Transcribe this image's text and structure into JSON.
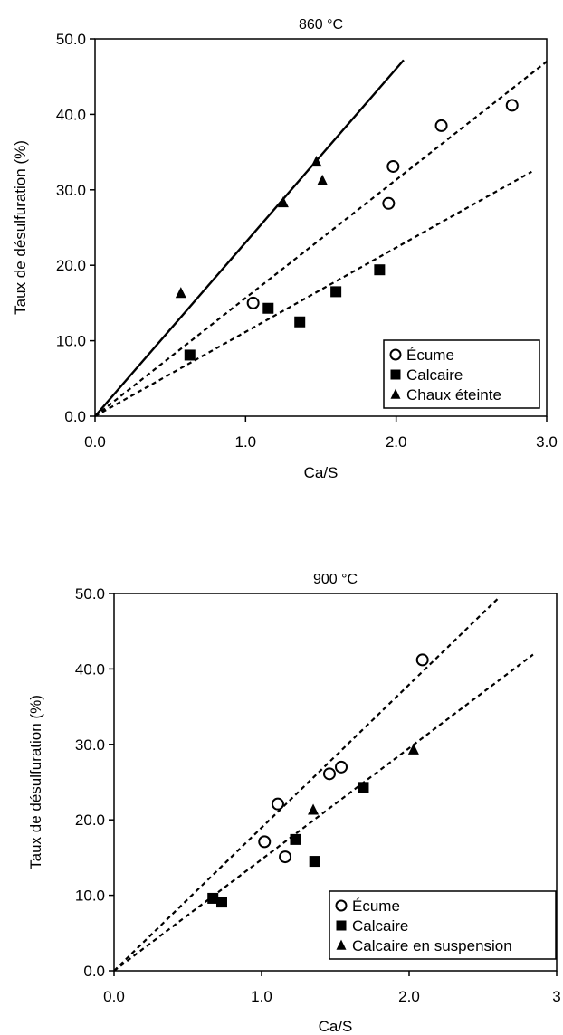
{
  "chart_data": [
    {
      "type": "scatter",
      "title": "860 °C",
      "xlabel": "Ca/S",
      "ylabel": "Taux de désulfuration (%)",
      "xlim": [
        0,
        3
      ],
      "ylim": [
        0,
        50
      ],
      "xticks": [
        0,
        1,
        2,
        3
      ],
      "xtick_labels": [
        "0.0",
        "1.0",
        "2.0",
        "3.0"
      ],
      "yticks": [
        0,
        10,
        20,
        30,
        40,
        50
      ],
      "ytick_labels": [
        "0.0",
        "10.0",
        "20.0",
        "30.0",
        "40.0",
        "50.0"
      ],
      "grid": false,
      "legend_position": "bottom-right",
      "series": [
        {
          "name": "Écume",
          "marker": "circle-open",
          "x": [
            1.05,
            1.95,
            1.98,
            2.3,
            2.77
          ],
          "y": [
            15.0,
            28.2,
            33.1,
            38.5,
            41.2
          ]
        },
        {
          "name": "Calcaire",
          "marker": "square-filled",
          "x": [
            0.63,
            1.15,
            1.36,
            1.6,
            1.89
          ],
          "y": [
            8.1,
            14.3,
            12.5,
            16.5,
            19.4
          ]
        },
        {
          "name": "Chaux éteinte",
          "marker": "triangle-filled",
          "x": [
            0.57,
            1.25,
            1.47,
            1.51
          ],
          "y": [
            16.3,
            28.3,
            33.7,
            31.2
          ]
        }
      ],
      "fit_lines": [
        {
          "style": "solid",
          "x": [
            0,
            2.05
          ],
          "y": [
            0,
            47.2
          ]
        },
        {
          "style": "dashed",
          "x": [
            0,
            3.0
          ],
          "y": [
            0,
            47.0
          ]
        },
        {
          "style": "dashed",
          "x": [
            0,
            2.9
          ],
          "y": [
            0,
            32.4
          ]
        }
      ]
    },
    {
      "type": "scatter",
      "title": "900 °C",
      "xlabel": "Ca/S",
      "ylabel": "Taux de désulfuration (%)",
      "xlim": [
        0,
        3
      ],
      "ylim": [
        0,
        50
      ],
      "xticks": [
        0,
        1,
        2,
        3
      ],
      "xtick_labels": [
        "0.0",
        "1.0",
        "2.0",
        "3"
      ],
      "yticks": [
        0,
        10,
        20,
        30,
        40,
        50
      ],
      "ytick_labels": [
        "0.0",
        "10.0",
        "20.0",
        "30.0",
        "40.0",
        "50.0"
      ],
      "grid": false,
      "legend_position": "bottom-right",
      "series": [
        {
          "name": "Écume",
          "marker": "circle-open",
          "x": [
            1.02,
            1.11,
            1.16,
            1.46,
            1.54,
            2.09
          ],
          "y": [
            17.1,
            22.1,
            15.1,
            26.1,
            27.0,
            41.2
          ]
        },
        {
          "name": "Calcaire",
          "marker": "square-filled",
          "x": [
            0.67,
            0.73,
            1.23,
            1.36,
            1.69
          ],
          "y": [
            9.6,
            9.1,
            17.4,
            14.5,
            24.3
          ]
        },
        {
          "name": "Calcaire en suspension",
          "marker": "triangle-filled",
          "x": [
            1.35,
            2.03
          ],
          "y": [
            21.3,
            29.3
          ]
        }
      ],
      "fit_lines": [
        {
          "style": "dashed",
          "x": [
            0,
            2.6
          ],
          "y": [
            0,
            49.3
          ]
        },
        {
          "style": "dashed",
          "x": [
            0,
            2.84
          ],
          "y": [
            0,
            41.9
          ]
        }
      ]
    }
  ]
}
